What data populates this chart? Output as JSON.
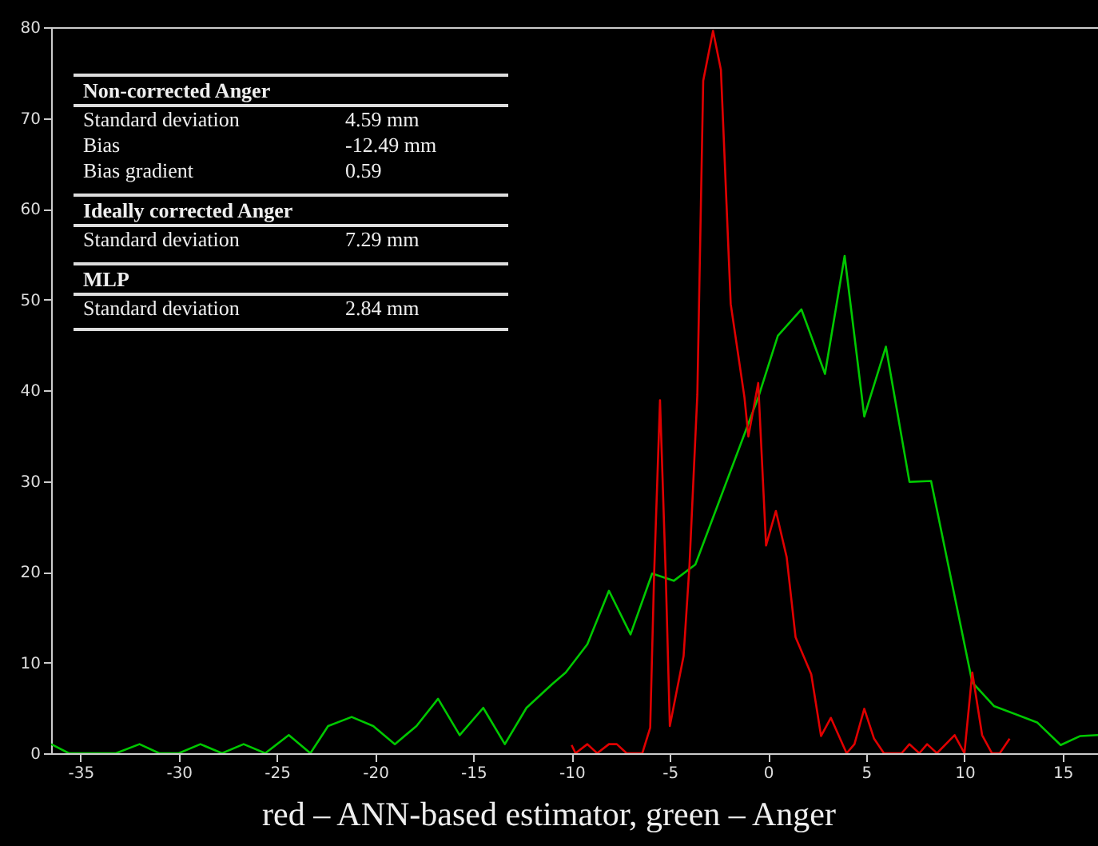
{
  "chart_data": {
    "type": "line",
    "annotations": [
      "Non-corrected Anger",
      "Standard deviation",
      "4.59 mm",
      "Bias",
      "-12.49 mm",
      "Bias gradient",
      "0.59",
      "Ideally corrected Anger",
      "Standard deviation",
      "7.29 mm",
      "MLP",
      "Standard deviation",
      "2.84 mm",
      "red – ANN-based estimator, green – Anger"
    ],
    "xlim": [
      -36.5,
      16.8
    ],
    "ylim": [
      0,
      80
    ],
    "xticks": [
      -35,
      -30,
      -25,
      -20,
      -15,
      -10,
      -5,
      0,
      5,
      10,
      15
    ],
    "yticks": [
      0,
      10,
      20,
      30,
      40,
      50,
      60,
      70,
      80
    ],
    "grid": false,
    "line_style": "solid",
    "series": [
      {
        "color": "#00c800",
        "x": [
          -36.5,
          -35.6,
          -33.2,
          -32.0,
          -31.0,
          -30.0,
          -28.9,
          -27.8,
          -26.7,
          -25.6,
          -24.4,
          -23.3,
          -22.4,
          -21.2,
          -20.1,
          -19.0,
          -17.9,
          -16.8,
          -15.7,
          -14.5,
          -13.4,
          -12.3,
          -11.0,
          -10.3,
          -9.2,
          -8.1,
          -7.0,
          -5.9,
          -4.8,
          -3.7,
          -0.5,
          0.5,
          1.7,
          2.9,
          3.9,
          4.9,
          6.0,
          7.2,
          8.3,
          10.4,
          11.5,
          13.7,
          14.9,
          15.9,
          16.8
        ],
        "values": [
          1,
          0,
          0,
          1,
          0,
          0,
          1,
          0,
          1,
          0,
          2,
          0,
          3,
          4,
          3,
          1,
          3,
          6,
          2,
          5,
          1,
          5,
          7.6,
          8.9,
          12,
          17.9,
          13.1,
          19.8,
          19,
          20.8,
          39.2,
          46,
          48.9,
          41.8,
          54.8,
          37.1,
          44.8,
          29.9,
          30,
          7.8,
          5.2,
          3.4,
          0.9,
          1.9,
          2
        ]
      },
      {
        "color": "#e00000",
        "x": [
          -10.0,
          -9.8,
          -9.2,
          -8.7,
          -8.1,
          -7.7,
          -7.2,
          -6.4,
          -6.0,
          -5.8,
          -5.5,
          -5.2,
          -5.0,
          -4.3,
          -4.0,
          -3.6,
          -3.3,
          -2.8,
          -2.4,
          -1.9,
          -1.2,
          -1.0,
          -0.5,
          -0.1,
          0.4,
          0.95,
          1.4,
          2.2,
          2.7,
          3.2,
          4.0,
          4.4,
          4.9,
          5.4,
          5.9,
          6.8,
          7.2,
          7.7,
          8.1,
          8.6,
          9.5,
          10.0,
          10.4,
          10.9,
          11.4,
          11.8,
          12.3
        ],
        "values": [
          0.9,
          0,
          1,
          0,
          1,
          1,
          0,
          0,
          2.8,
          19.7,
          38.9,
          19,
          3,
          10.7,
          20.7,
          39.5,
          74.1,
          79.6,
          75.3,
          49.5,
          39.2,
          34.9,
          40.8,
          22.9,
          26.7,
          21.6,
          12.8,
          8.7,
          1.9,
          3.9,
          0,
          1,
          4.9,
          1.6,
          0,
          0,
          1,
          0,
          1,
          0,
          2,
          0,
          8.9,
          2,
          0,
          0,
          1.6
        ]
      }
    ]
  }
}
